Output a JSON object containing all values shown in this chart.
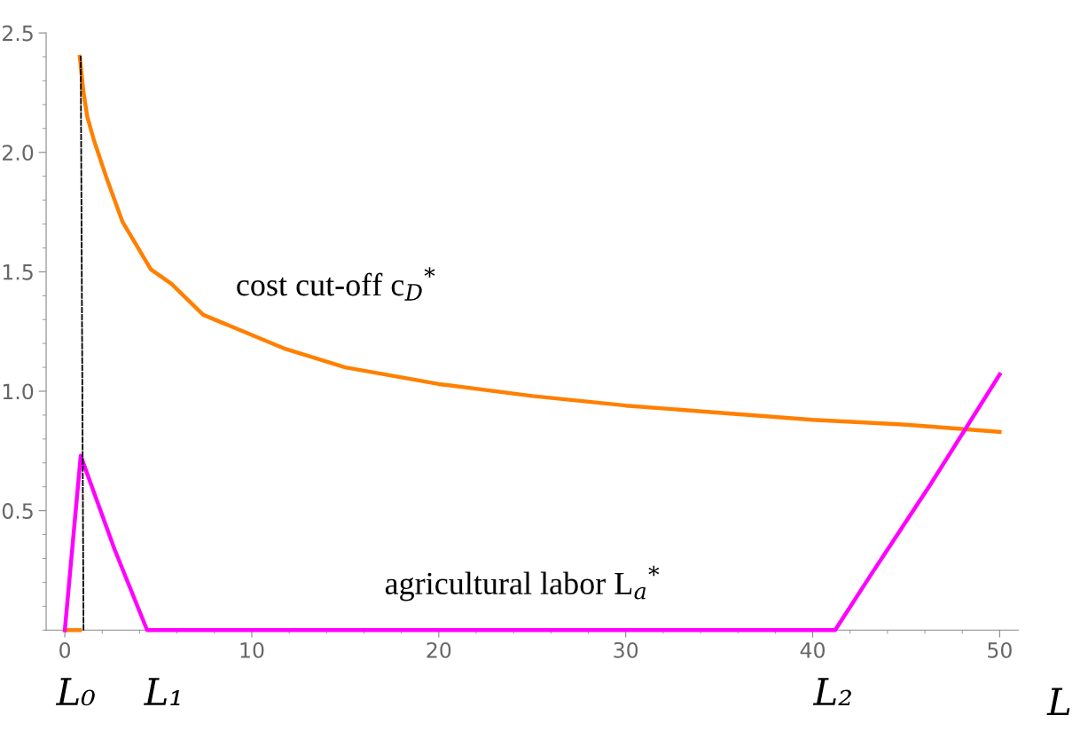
{
  "chart_data": {
    "type": "line",
    "xlim": [
      -1,
      51
    ],
    "ylim": [
      0,
      2.5
    ],
    "xticks": [
      0,
      10,
      20,
      30,
      40,
      50
    ],
    "yticks": [
      0.5,
      {
        "value": 1,
        "label": "1.0"
      },
      1.5,
      {
        "value": 2,
        "label": "2.0"
      },
      2.5
    ],
    "grid": false,
    "legend": false,
    "marker": "none",
    "series": [
      {
        "color": "#ff8000",
        "line_style": "solid",
        "x": [
          0,
          0.8
        ],
        "values": [
          0,
          0
        ]
      },
      {
        "color": "#ff8000",
        "line_style": "solid",
        "x": [
          0.8,
          1.0,
          1.2,
          1.56,
          2.2,
          3.08,
          4.6,
          5.7,
          7.4,
          11.7,
          15,
          20,
          25,
          30,
          35,
          40,
          45,
          50
        ],
        "values": [
          2.4,
          2.25,
          2.15,
          2.05,
          1.9,
          1.71,
          1.51,
          1.45,
          1.32,
          1.18,
          1.1,
          1.03,
          0.98,
          0.94,
          0.91,
          0.88,
          0.86,
          0.83
        ]
      },
      {
        "color": "#ff00ff",
        "line_style": "solid",
        "x": [
          0,
          0.85,
          2.65,
          4.4,
          41.2,
          43.1,
          46.3,
          50
        ],
        "values": [
          0,
          0.73,
          0.34,
          0,
          0,
          0.23,
          0.61,
          1.07
        ]
      },
      {
        "color": "#000000",
        "line_style": "dashed",
        "x": [
          1.0,
          0.85
        ],
        "values": [
          0,
          2.4
        ]
      }
    ],
    "annotations": [
      "cost cut-off c$_{D}$$^{*}$",
      "agricultural labor L$_{a}$$^{*}$",
      {
        "text": "L₀",
        "x": 0.6,
        "y": 0
      },
      {
        "text": "L₁",
        "x": 5.3,
        "y": 0
      },
      {
        "text": "L₂",
        "x": 41.1,
        "y": 0
      },
      "L"
    ]
  }
}
